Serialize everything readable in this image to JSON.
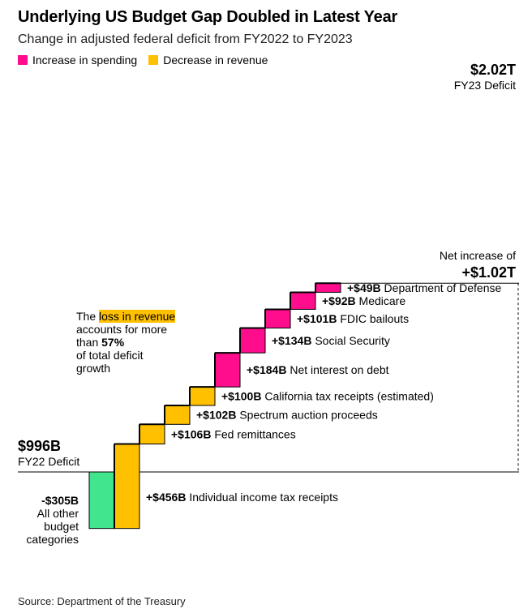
{
  "title": "Underlying US Budget Gap Doubled in Latest Year",
  "subtitle": "Change in adjusted federal deficit from FY2022 to FY2023",
  "legend": [
    {
      "label": "Increase in spending",
      "color": "#ff0d8d"
    },
    {
      "label": "Decrease in revenue",
      "color": "#ffc000"
    }
  ],
  "colors": {
    "spending": "#ff0d8d",
    "revenue": "#ffc000",
    "other": "#40e58d"
  },
  "annotation": {
    "pre": "The ",
    "highlight": "loss in revenue",
    "line2": "accounts for more",
    "line3_pre": "than ",
    "line3_bold": "57%",
    "line4": "of total deficit",
    "line5": "growth"
  },
  "source": "Source: Department of the Treasury",
  "chart_data": {
    "type": "bar",
    "title": "Underlying US Budget Gap Doubled in Latest Year",
    "start": {
      "value_label": "$996B",
      "name": "FY22 Deficit",
      "value": 996
    },
    "end": {
      "value_label": "$2.02T",
      "name": "FY23 Deficit",
      "value": 2020
    },
    "net": {
      "label": "Net increase of",
      "value_label": "+$1.02T"
    },
    "steps": [
      {
        "category": "other",
        "amount_label": "-$305B",
        "name_lines": [
          "All other",
          "budget",
          "categories"
        ],
        "value": -305
      },
      {
        "category": "revenue",
        "amount_label": "+$456B",
        "name": "Individual income tax receipts",
        "value": 456
      },
      {
        "category": "revenue",
        "amount_label": "+$106B",
        "name": "Fed remittances",
        "value": 106
      },
      {
        "category": "revenue",
        "amount_label": "+$102B",
        "name": "Spectrum auction proceeds",
        "value": 102
      },
      {
        "category": "revenue",
        "amount_label": "+$100B",
        "name": "California tax receipts (estimated)",
        "value": 100
      },
      {
        "category": "spending",
        "amount_label": "+$184B",
        "name": "Net interest on debt",
        "value": 184
      },
      {
        "category": "spending",
        "amount_label": "+$134B",
        "name": "Social Security",
        "value": 134
      },
      {
        "category": "spending",
        "amount_label": "+$101B",
        "name": "FDIC bailouts",
        "value": 101
      },
      {
        "category": "spending",
        "amount_label": "+$92B",
        "name": "Medicare",
        "value": 92
      },
      {
        "category": "spending",
        "amount_label": "+$49B",
        "name": "Department of Defense",
        "value": 49
      }
    ]
  }
}
